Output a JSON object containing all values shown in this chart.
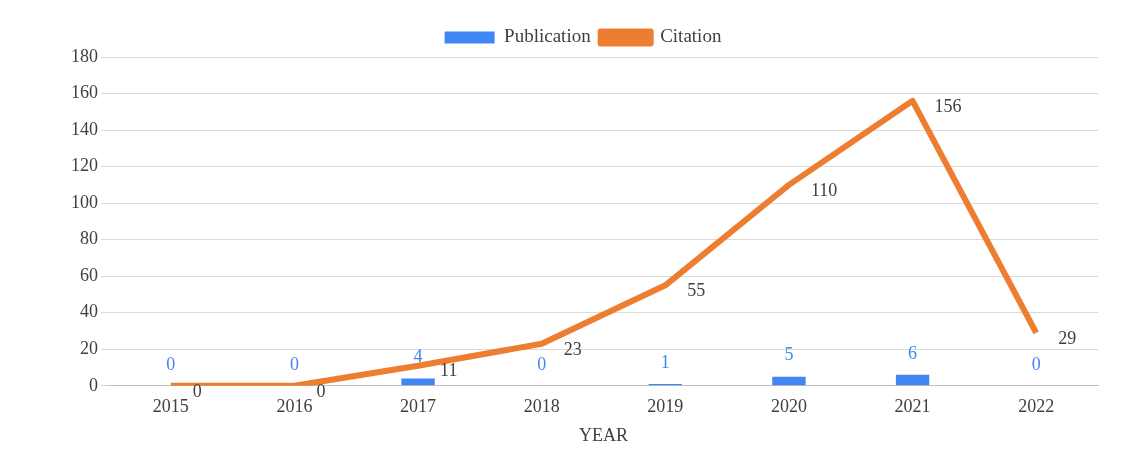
{
  "chart_data": {
    "type": "bar",
    "xlabel": "YEAR",
    "categories": [
      "2015",
      "2016",
      "2017",
      "2018",
      "2019",
      "2020",
      "2021",
      "2022"
    ],
    "series": [
      {
        "name": "Publication",
        "color": "#4285f4",
        "values": [
          0,
          0,
          4,
          0,
          1,
          5,
          6,
          0
        ]
      },
      {
        "name": "Citation",
        "type": "line",
        "color": "#ed7d31",
        "values": [
          0,
          0,
          11,
          23,
          55,
          110,
          156,
          29
        ]
      }
    ],
    "ylim": [
      0,
      180
    ],
    "yticks": [
      0,
      20,
      40,
      60,
      80,
      100,
      120,
      140,
      160,
      180
    ],
    "grid": "y",
    "legend": "top",
    "data_labels": true,
    "marker": "none",
    "line_style": "solid"
  }
}
